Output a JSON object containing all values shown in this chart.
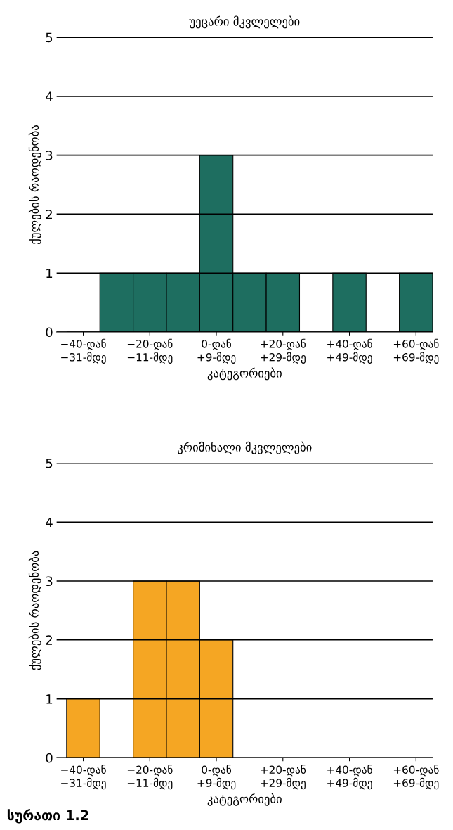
{
  "chart_data": [
    {
      "type": "bar",
      "title": "უეცარი მკვლელები",
      "xlabel": "კატეგორიები",
      "ylabel": "ქულების რაოდენობა",
      "categories": [
        "−40-დან\n−31-მდე",
        null,
        "−20-დან\n−11-მდე",
        null,
        "0-დან\n+9-მდე",
        null,
        "+20-დან\n+29-მდე",
        null,
        "+40-დან\n+49-მდე",
        null,
        "+60-დან\n+69-მდე"
      ],
      "values": [
        0,
        1,
        1,
        1,
        3,
        1,
        1,
        0,
        1,
        0,
        1
      ],
      "color": "#1e6e60",
      "ylim": [
        0,
        5
      ],
      "yticks": [
        0,
        1,
        2,
        3,
        4,
        5
      ],
      "grid": "y"
    },
    {
      "type": "bar",
      "title": "კრიმინალი მკვლელები",
      "xlabel": "კატეგორიები",
      "ylabel": "ქულების რაოდენობა",
      "categories": [
        "−40-დან\n−31-მდე",
        null,
        "−20-დან\n−11-მდე",
        null,
        "0-დან\n+9-მდე",
        null,
        "+20-დან\n+29-მდე",
        null,
        "+40-დან\n+49-მდე",
        null,
        "+60-დან\n+69-მდე"
      ],
      "values": [
        1,
        0,
        3,
        3,
        2,
        0,
        0,
        0,
        0,
        0,
        0
      ],
      "color": "#f5a623",
      "ylim": [
        0,
        5
      ],
      "yticks": [
        0,
        1,
        2,
        3,
        4,
        5
      ],
      "grid": "y",
      "annotations": [
        "სურათი 1.2"
      ]
    }
  ]
}
